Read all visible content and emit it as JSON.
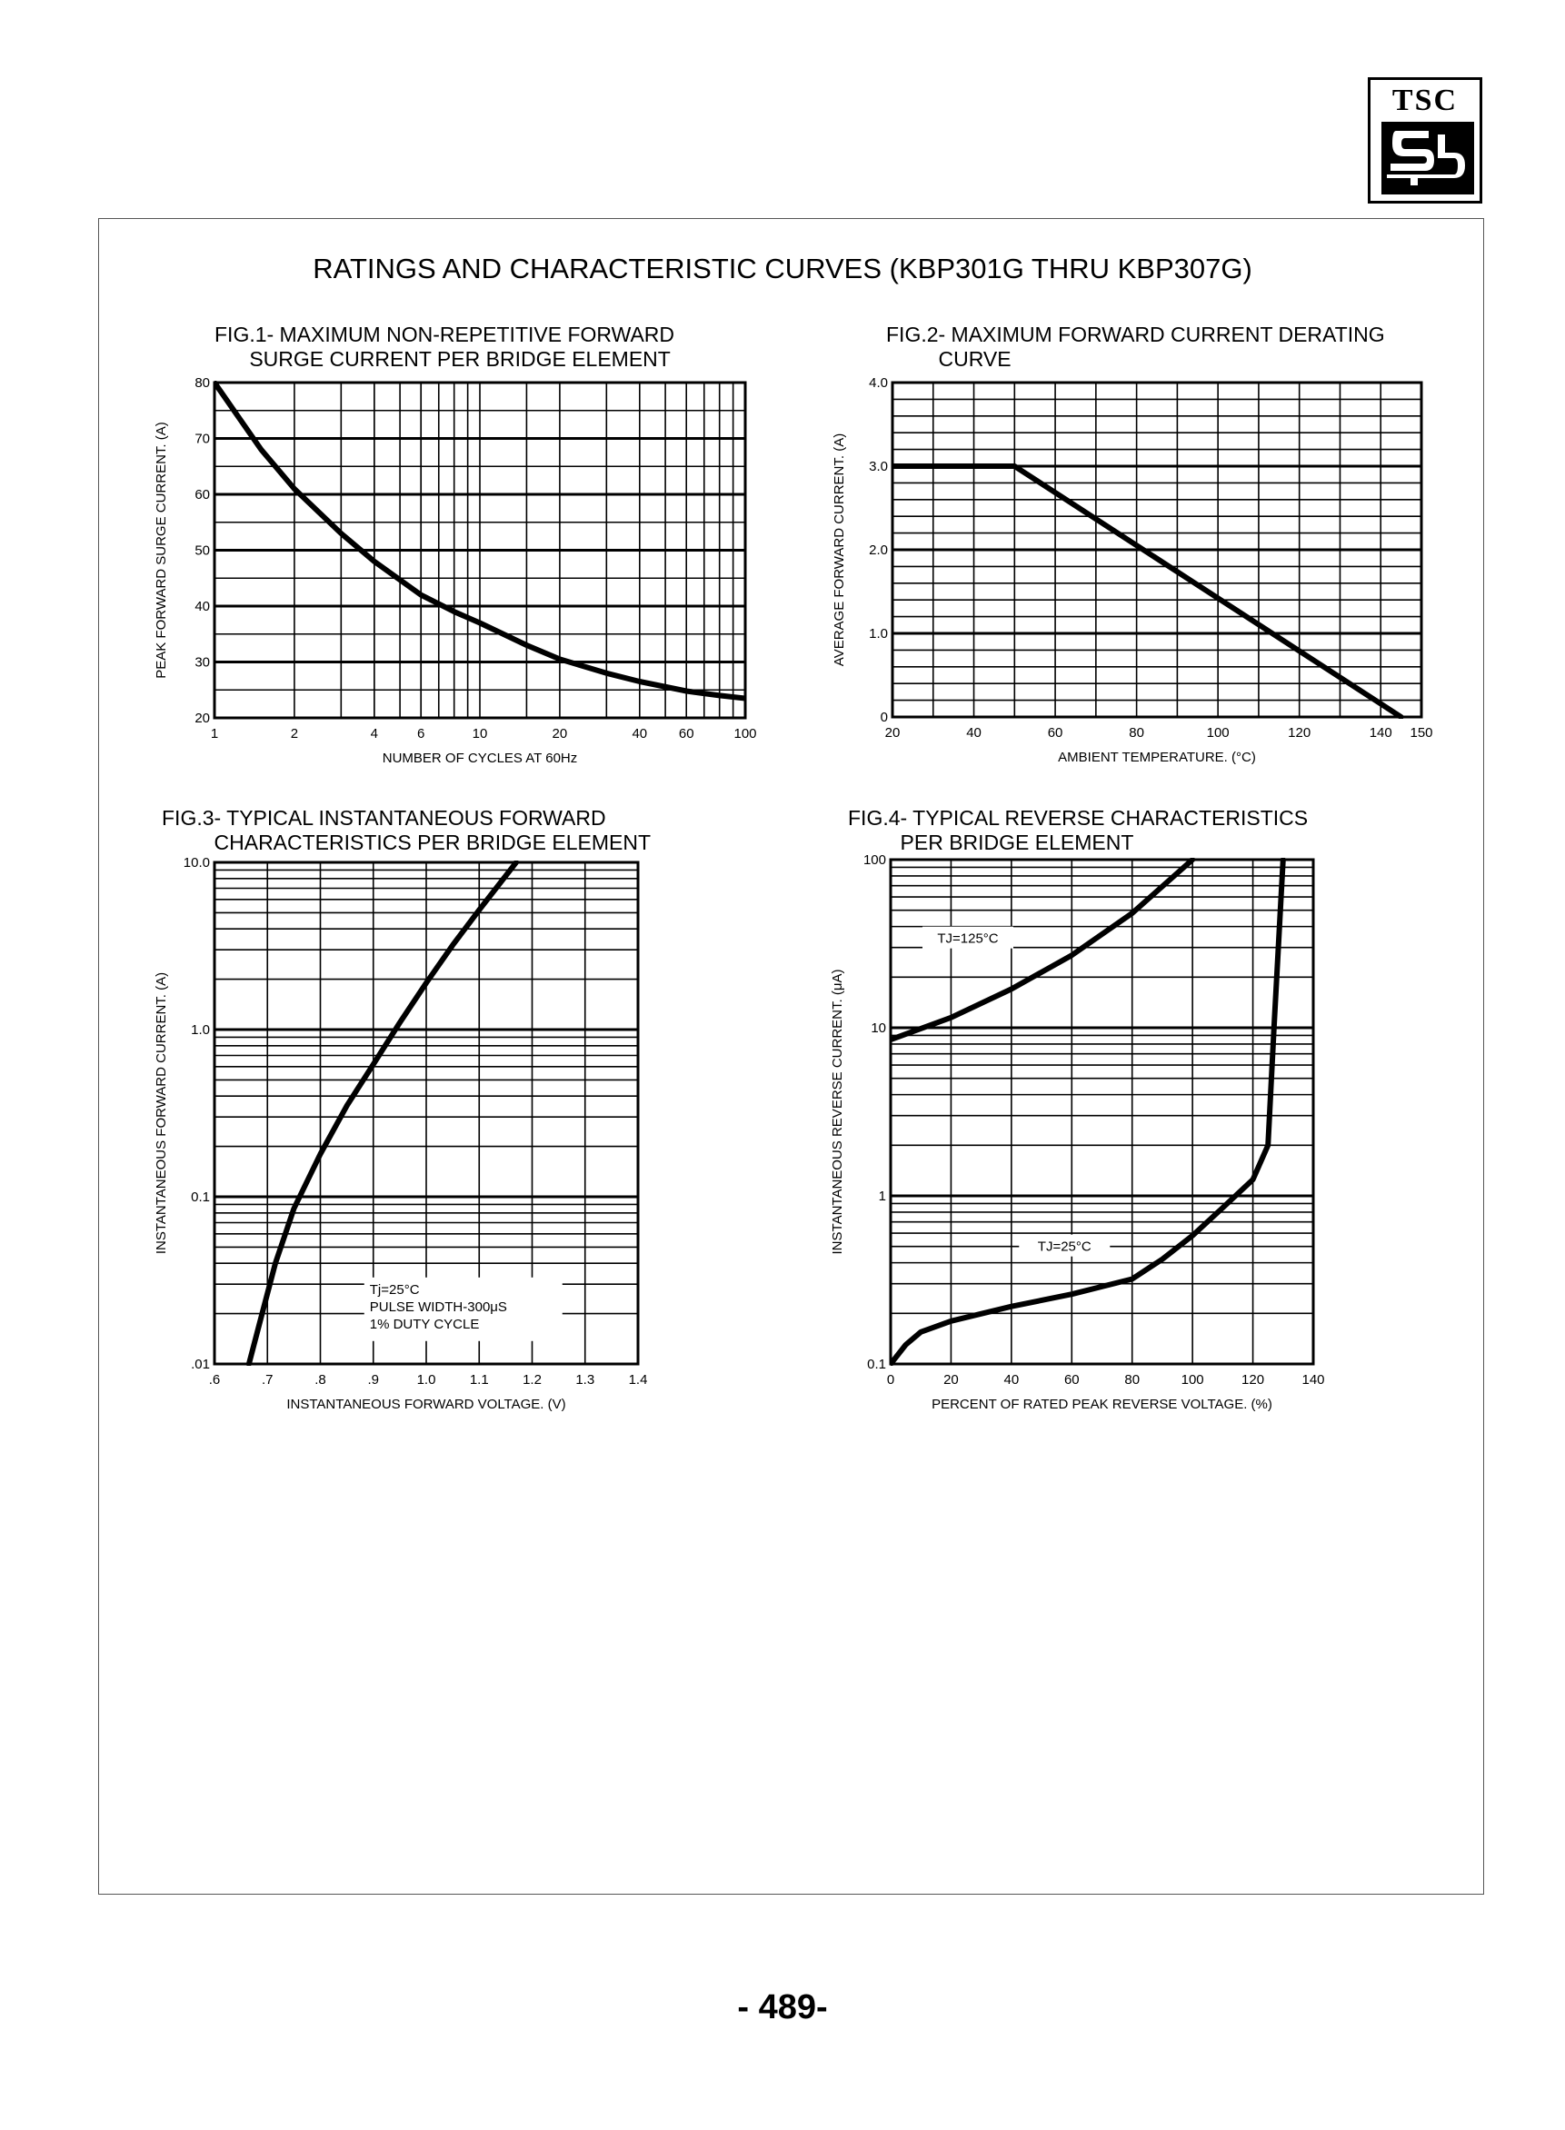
{
  "logo": {
    "text": "TSC"
  },
  "page_title": "RATINGS AND CHARACTERISTIC CURVES (KBP301G THRU KBP307G)",
  "page_number": "- 489-",
  "chart_data": [
    {
      "id": "fig1",
      "type": "line",
      "title_lines": [
        "FIG.1- MAXIMUM NON-REPETITIVE FORWARD",
        "      SURGE CURRENT PER BRIDGE ELEMENT"
      ],
      "xlabel": "NUMBER OF CYCLES AT 60Hz",
      "ylabel": "PEAK FORWARD SURGE CURRENT. (A)",
      "xscale": "log",
      "xlim": [
        1,
        100
      ],
      "yscale": "linear",
      "ylim": [
        20,
        80
      ],
      "x_ticks": [
        1,
        2,
        4,
        6,
        10,
        20,
        40,
        60,
        100
      ],
      "x_tick_labels": [
        "1",
        "2",
        "4",
        "6",
        "10",
        "20",
        "40",
        "60",
        "100"
      ],
      "y_ticks": [
        20,
        30,
        40,
        50,
        60,
        70,
        80
      ],
      "y_tick_labels": [
        "20",
        "30",
        "40",
        "50",
        "60",
        "70",
        "80"
      ],
      "series": [
        {
          "x": [
            1,
            1.5,
            2,
            3,
            4,
            6,
            8,
            10,
            15,
            20,
            30,
            40,
            60,
            80,
            100
          ],
          "y": [
            80,
            68,
            61,
            53,
            48,
            42,
            39,
            37,
            33,
            30.5,
            28,
            26.5,
            24.8,
            24,
            23.5
          ]
        }
      ]
    },
    {
      "id": "fig2",
      "type": "line",
      "title_lines": [
        "FIG.2- MAXIMUM FORWARD CURRENT DERATING",
        "         CURVE"
      ],
      "xlabel": "AMBIENT TEMPERATURE. (°C)",
      "ylabel": "AVERAGE FORWARD CURRENT. (A)",
      "xscale": "linear",
      "xlim": [
        20,
        150
      ],
      "yscale": "linear",
      "ylim": [
        0,
        4.0
      ],
      "x_ticks": [
        20,
        40,
        60,
        80,
        100,
        120,
        140,
        150
      ],
      "x_tick_labels": [
        "20",
        "40",
        "60",
        "80",
        "100",
        "120",
        "140",
        "150"
      ],
      "y_ticks": [
        0,
        1.0,
        2.0,
        3.0,
        4.0
      ],
      "y_tick_labels": [
        "0",
        "1.0",
        "2.0",
        "3.0",
        "4.0"
      ],
      "series": [
        {
          "x": [
            20,
            50,
            145
          ],
          "y": [
            3.0,
            3.0,
            0
          ]
        }
      ]
    },
    {
      "id": "fig3",
      "type": "line",
      "title_lines": [
        "FIG.3- TYPICAL INSTANTANEOUS FORWARD",
        "         CHARACTERISTICS PER BRIDGE ELEMENT"
      ],
      "xlabel": "INSTANTANEOUS FORWARD VOLTAGE. (V)",
      "ylabel": "INSTANTANEOUS FORWARD CURRENT. (A)",
      "xscale": "linear",
      "xlim": [
        0.6,
        1.4
      ],
      "yscale": "log",
      "ylim": [
        0.01,
        10.0
      ],
      "x_ticks": [
        0.6,
        0.7,
        0.8,
        0.9,
        1.0,
        1.1,
        1.2,
        1.3,
        1.4
      ],
      "x_tick_labels": [
        ".6",
        ".7",
        ".8",
        ".9",
        "1.0",
        "1.1",
        "1.2",
        "1.3",
        "1.4"
      ],
      "y_ticks": [
        0.01,
        0.1,
        1.0,
        10.0
      ],
      "y_tick_labels": [
        ".01",
        "0.1",
        "1.0",
        "10.0"
      ],
      "annotations": [
        "Tj=25°C",
        "PULSE WIDTH-300μS",
        "1% DUTY CYCLE"
      ],
      "series": [
        {
          "x": [
            0.665,
            0.69,
            0.715,
            0.75,
            0.8,
            0.85,
            0.9,
            0.95,
            1.0,
            1.05,
            1.1,
            1.17
          ],
          "y": [
            0.01,
            0.02,
            0.04,
            0.085,
            0.18,
            0.35,
            0.62,
            1.1,
            1.9,
            3.2,
            5.2,
            10.0
          ]
        }
      ]
    },
    {
      "id": "fig4",
      "type": "line",
      "title_lines": [
        "FIG.4- TYPICAL REVERSE CHARACTERISTICS",
        "         PER BRIDGE ELEMENT"
      ],
      "xlabel": "PERCENT OF RATED PEAK REVERSE VOLTAGE. (%)",
      "ylabel": "INSTANTANEOUS REVERSE CURRENT. (μA)",
      "xscale": "linear",
      "xlim": [
        0,
        140
      ],
      "yscale": "log",
      "ylim": [
        0.1,
        100
      ],
      "x_ticks": [
        0,
        20,
        40,
        60,
        80,
        100,
        120,
        140
      ],
      "x_tick_labels": [
        "0",
        "20",
        "40",
        "60",
        "80",
        "100",
        "120",
        "140"
      ],
      "y_ticks": [
        0.1,
        1,
        10,
        100
      ],
      "y_tick_labels": [
        "0.1",
        "1",
        "10",
        "100"
      ],
      "series": [
        {
          "name": "TJ=125°C",
          "x": [
            0,
            20,
            40,
            60,
            80,
            100
          ],
          "y": [
            8.5,
            11.5,
            17,
            27,
            48,
            100
          ]
        },
        {
          "name": "TJ=25°C",
          "x": [
            0,
            5,
            10,
            20,
            40,
            60,
            80,
            90,
            100,
            110,
            120,
            125,
            127,
            130
          ],
          "y": [
            0.1,
            0.13,
            0.155,
            0.18,
            0.22,
            0.26,
            0.32,
            0.42,
            0.58,
            0.85,
            1.25,
            2.0,
            10,
            100
          ]
        }
      ]
    }
  ]
}
